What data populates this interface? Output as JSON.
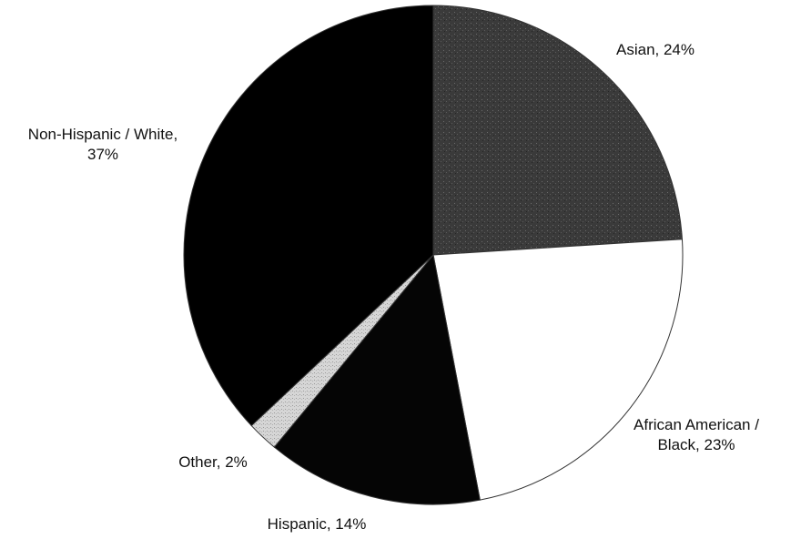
{
  "chart_data": {
    "type": "pie",
    "start": "12 o'clock",
    "direction": "clockwise",
    "slices": [
      {
        "label_lines": [
          "Asian, 24%"
        ],
        "category": "Asian",
        "value": 24,
        "color": "#3a3a3a"
      },
      {
        "label_lines": [
          "African American /",
          "Black, 23%"
        ],
        "category": "African American / Black",
        "value": 23,
        "color": "#ffffff"
      },
      {
        "label_lines": [
          "Hispanic, 14%"
        ],
        "category": "Hispanic",
        "value": 14,
        "color": "#050505"
      },
      {
        "label_lines": [
          "Other, 2%"
        ],
        "category": "Other",
        "value": 2,
        "color": "#d4d4d4"
      },
      {
        "label_lines": [
          "Non-Hispanic / White,",
          "37%"
        ],
        "category": "Non-Hispanic / White",
        "value": 37,
        "color": "#000000"
      }
    ]
  }
}
